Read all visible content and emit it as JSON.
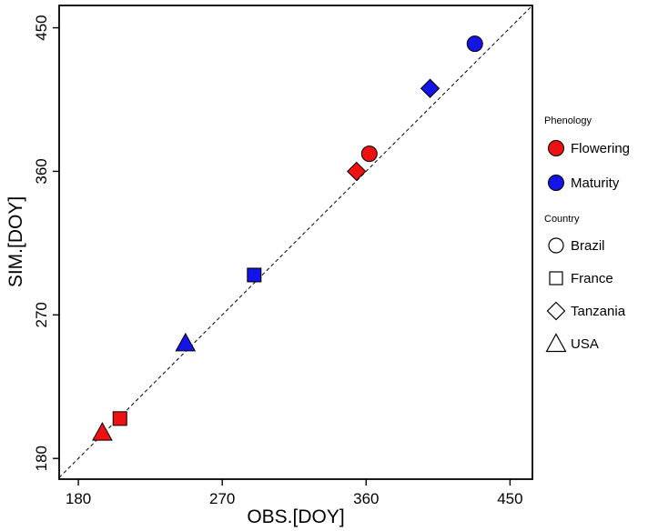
{
  "chart_data": {
    "type": "scatter",
    "title": "",
    "xlabel": "OBS.[DOY]",
    "ylabel": "SIM.[DOY]",
    "xlim": [
      168,
      464
    ],
    "ylim": [
      167,
      464
    ],
    "xticks": [
      180,
      270,
      360,
      450
    ],
    "yticks": [
      180,
      270,
      360,
      450
    ],
    "grid": false,
    "identity_line": true,
    "identity_line_style": "dashed",
    "series": [
      {
        "name": "Flowering",
        "color": "#EE1111",
        "points": [
          {
            "country": "USA",
            "shape": "triangle",
            "x": 195,
            "y": 196
          },
          {
            "country": "France",
            "shape": "square",
            "x": 206,
            "y": 205
          },
          {
            "country": "Tanzania",
            "shape": "diamond",
            "x": 354,
            "y": 360
          },
          {
            "country": "Brazil",
            "shape": "circle",
            "x": 362,
            "y": 371
          }
        ]
      },
      {
        "name": "Maturity",
        "color": "#1414E6",
        "points": [
          {
            "country": "USA",
            "shape": "triangle",
            "x": 247,
            "y": 252
          },
          {
            "country": "France",
            "shape": "square",
            "x": 290,
            "y": 295
          },
          {
            "country": "Tanzania",
            "shape": "diamond",
            "x": 400,
            "y": 412
          },
          {
            "country": "Brazil",
            "shape": "circle",
            "x": 428,
            "y": 440
          }
        ]
      }
    ]
  },
  "legend": {
    "phenology_title": "Phenology",
    "phenology_items": [
      {
        "label": "Flowering",
        "color": "#EE1111"
      },
      {
        "label": "Maturity",
        "color": "#1414E6"
      }
    ],
    "country_title": "Country",
    "country_items": [
      {
        "label": "Brazil",
        "shape": "circle"
      },
      {
        "label": "France",
        "shape": "square"
      },
      {
        "label": "Tanzania",
        "shape": "diamond"
      },
      {
        "label": "USA",
        "shape": "triangle"
      }
    ]
  }
}
